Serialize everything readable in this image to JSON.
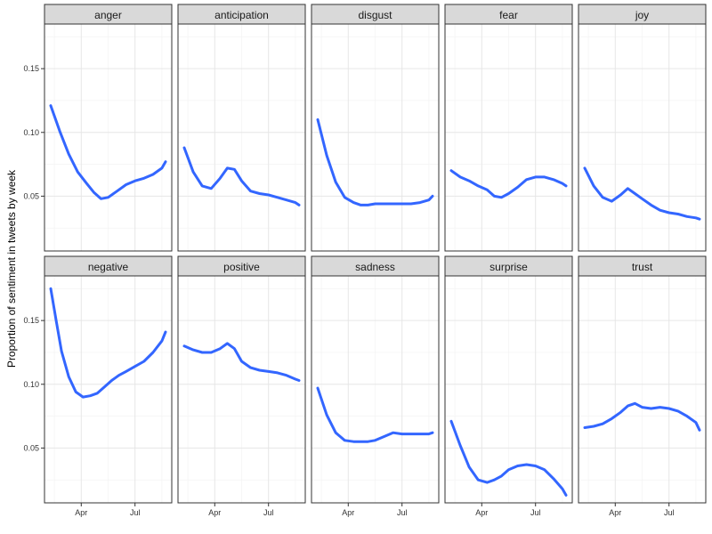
{
  "chart_data": {
    "type": "line",
    "ylabel": "Proportion of sentiment in tweets by week",
    "xlabel": "",
    "x_ticks": [
      "Apr",
      "Jul"
    ],
    "x_tick_positions": [
      3.5,
      6.5
    ],
    "xlim": [
      1.45,
      8.55
    ],
    "y_ticks": [
      "0.05",
      "0.10",
      "0.15"
    ],
    "y_tick_values": [
      0.05,
      0.1,
      0.15
    ],
    "ylim": [
      0.007,
      0.185
    ],
    "grid": true,
    "line_color": "#3366FF",
    "panels": [
      {
        "name": "anger",
        "x": [
          1.8,
          2.3,
          2.8,
          3.3,
          3.8,
          4.2,
          4.6,
          5.0,
          5.5,
          6.0,
          6.5,
          7.0,
          7.5,
          8.0,
          8.2
        ],
        "y": [
          0.121,
          0.101,
          0.083,
          0.069,
          0.06,
          0.053,
          0.048,
          0.049,
          0.054,
          0.059,
          0.062,
          0.064,
          0.067,
          0.072,
          0.077
        ]
      },
      {
        "name": "anticipation",
        "x": [
          1.8,
          2.3,
          2.8,
          3.3,
          3.8,
          4.2,
          4.6,
          5.0,
          5.5,
          6.0,
          6.5,
          7.0,
          7.5,
          8.0,
          8.2
        ],
        "y": [
          0.088,
          0.069,
          0.058,
          0.056,
          0.064,
          0.072,
          0.071,
          0.062,
          0.054,
          0.052,
          0.051,
          0.049,
          0.047,
          0.045,
          0.043
        ]
      },
      {
        "name": "disgust",
        "x": [
          1.8,
          2.3,
          2.8,
          3.3,
          3.8,
          4.2,
          4.6,
          5.0,
          5.5,
          6.0,
          6.5,
          7.0,
          7.5,
          8.0,
          8.2
        ],
        "y": [
          0.11,
          0.082,
          0.061,
          0.049,
          0.045,
          0.043,
          0.043,
          0.044,
          0.044,
          0.044,
          0.044,
          0.044,
          0.045,
          0.047,
          0.05
        ]
      },
      {
        "name": "fear",
        "x": [
          1.8,
          2.3,
          2.8,
          3.3,
          3.8,
          4.2,
          4.6,
          5.0,
          5.5,
          6.0,
          6.5,
          7.0,
          7.5,
          8.0,
          8.2
        ],
        "y": [
          0.07,
          0.065,
          0.062,
          0.058,
          0.055,
          0.05,
          0.049,
          0.052,
          0.057,
          0.063,
          0.065,
          0.065,
          0.063,
          0.06,
          0.058
        ]
      },
      {
        "name": "joy",
        "x": [
          1.8,
          2.3,
          2.8,
          3.3,
          3.8,
          4.2,
          4.6,
          5.0,
          5.5,
          6.0,
          6.5,
          7.0,
          7.5,
          8.0,
          8.2
        ],
        "y": [
          0.072,
          0.058,
          0.049,
          0.046,
          0.051,
          0.056,
          0.052,
          0.048,
          0.043,
          0.039,
          0.037,
          0.036,
          0.034,
          0.033,
          0.032
        ]
      },
      {
        "name": "negative",
        "x": [
          1.8,
          2.1,
          2.4,
          2.8,
          3.2,
          3.6,
          4.0,
          4.4,
          4.8,
          5.2,
          5.6,
          6.0,
          6.5,
          7.0,
          7.5,
          8.0,
          8.2
        ],
        "y": [
          0.175,
          0.15,
          0.126,
          0.106,
          0.094,
          0.09,
          0.091,
          0.093,
          0.098,
          0.103,
          0.107,
          0.11,
          0.114,
          0.118,
          0.125,
          0.134,
          0.141
        ]
      },
      {
        "name": "positive",
        "x": [
          1.8,
          2.3,
          2.8,
          3.3,
          3.8,
          4.2,
          4.6,
          5.0,
          5.5,
          6.0,
          6.5,
          7.0,
          7.5,
          8.0,
          8.2
        ],
        "y": [
          0.13,
          0.127,
          0.125,
          0.125,
          0.128,
          0.132,
          0.128,
          0.118,
          0.113,
          0.111,
          0.11,
          0.109,
          0.107,
          0.104,
          0.103
        ]
      },
      {
        "name": "sadness",
        "x": [
          1.8,
          2.3,
          2.8,
          3.3,
          3.8,
          4.2,
          4.6,
          5.0,
          5.5,
          6.0,
          6.5,
          7.0,
          7.5,
          8.0,
          8.2
        ],
        "y": [
          0.097,
          0.076,
          0.062,
          0.056,
          0.055,
          0.055,
          0.055,
          0.056,
          0.059,
          0.062,
          0.061,
          0.061,
          0.061,
          0.061,
          0.062
        ]
      },
      {
        "name": "surprise",
        "x": [
          1.8,
          2.3,
          2.8,
          3.3,
          3.8,
          4.2,
          4.6,
          5.0,
          5.5,
          6.0,
          6.5,
          7.0,
          7.5,
          8.0,
          8.2
        ],
        "y": [
          0.071,
          0.052,
          0.035,
          0.025,
          0.023,
          0.025,
          0.028,
          0.033,
          0.036,
          0.037,
          0.036,
          0.033,
          0.026,
          0.018,
          0.013
        ]
      },
      {
        "name": "trust",
        "x": [
          1.8,
          2.3,
          2.8,
          3.3,
          3.8,
          4.2,
          4.6,
          5.0,
          5.5,
          6.0,
          6.5,
          7.0,
          7.5,
          8.0,
          8.2
        ],
        "y": [
          0.066,
          0.067,
          0.069,
          0.073,
          0.078,
          0.083,
          0.085,
          0.082,
          0.081,
          0.082,
          0.081,
          0.079,
          0.075,
          0.07,
          0.064
        ]
      }
    ]
  }
}
